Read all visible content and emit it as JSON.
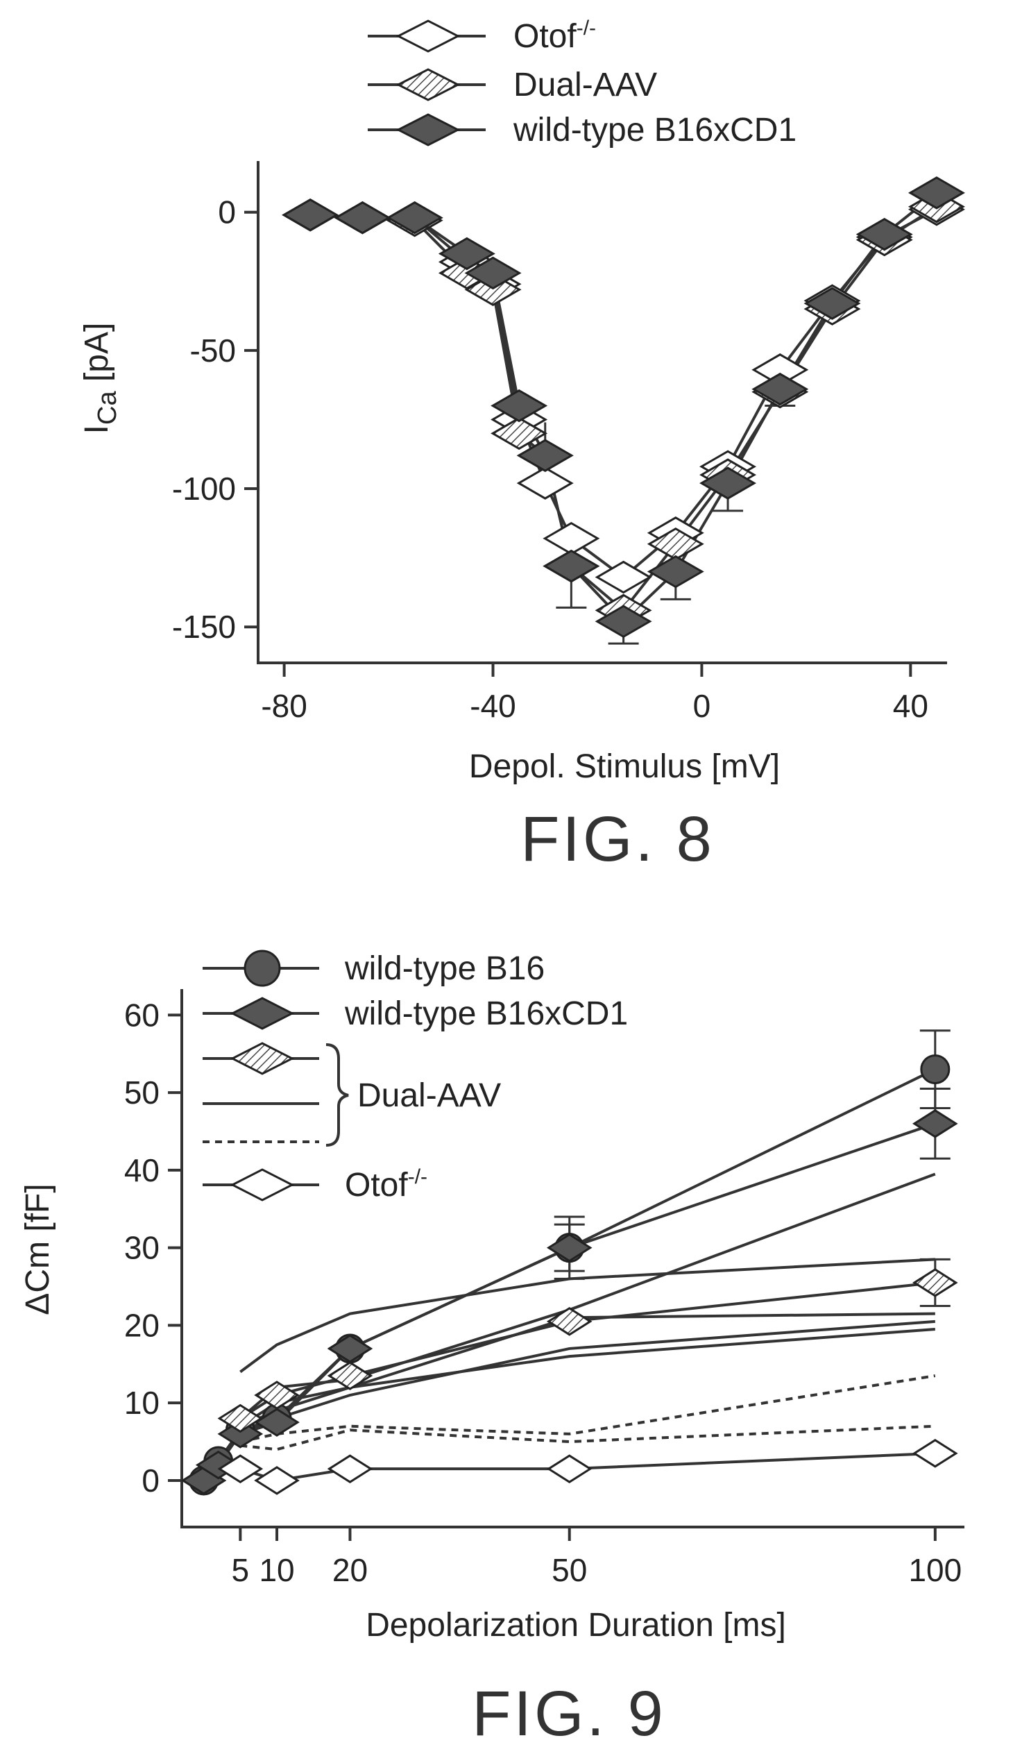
{
  "chart_data": [
    {
      "type": "line",
      "title": "FIG. 8",
      "xlabel": "Depol. Stimulus [mV]",
      "ylabel": "I",
      "ylabel_sub": "Ca",
      "ylabel_unit": " [pA]",
      "xlim": [
        -85,
        47
      ],
      "ylim": [
        -163,
        16
      ],
      "xticks": [
        -80,
        -40,
        0,
        40
      ],
      "yticks": [
        0,
        -50,
        -100,
        -150
      ],
      "xtick_labels": [
        "-80",
        "-40",
        "0",
        "40"
      ],
      "ytick_labels": [
        "0",
        "-50",
        "-100",
        "-150"
      ],
      "legend_position": "top",
      "legend_sup": "-/-",
      "series": [
        {
          "name": "Otof",
          "marker": "diamond-open",
          "x": [
            -75,
            -65,
            -55,
            -45,
            -40,
            -35,
            -30,
            -25,
            -15,
            -5,
            5,
            15,
            25,
            35,
            45
          ],
          "y": [
            -1,
            -2,
            -2,
            -18,
            -26,
            -75,
            -98,
            -118,
            -132,
            -116,
            -92,
            -57,
            -32,
            -9,
            1
          ]
        },
        {
          "name": "Dual-AAV",
          "marker": "diamond-hatched",
          "x": [
            -75,
            -65,
            -55,
            -45,
            -40,
            -35,
            -30,
            -25,
            -15,
            -5,
            5,
            15,
            25,
            35,
            45
          ],
          "y": [
            -1,
            -2,
            -3,
            -22,
            -28,
            -80,
            -88,
            -128,
            -144,
            -120,
            -95,
            -65,
            -35,
            -10,
            2
          ]
        },
        {
          "name": "wild-type B16xCD1",
          "marker": "diamond-filled",
          "x": [
            -75,
            -65,
            -55,
            -45,
            -40,
            -35,
            -30,
            -25,
            -15,
            -5,
            5,
            15,
            25,
            35,
            45
          ],
          "y": [
            -1,
            -2,
            -2,
            -15,
            -22,
            -70,
            -88,
            -128,
            -148,
            -130,
            -98,
            -64,
            -33,
            -8,
            7
          ],
          "error": [
            0,
            0,
            0,
            3,
            3,
            4,
            12,
            15,
            8,
            10,
            10,
            6,
            3,
            2,
            2
          ]
        }
      ]
    },
    {
      "type": "line",
      "title": "FIG. 9",
      "xlabel": "Depolarization Duration [ms]",
      "ylabel": "ΔCm [fF]",
      "xlim": [
        -3,
        104
      ],
      "ylim": [
        -6,
        62
      ],
      "xticks": [
        5,
        10,
        20,
        50,
        100
      ],
      "yticks": [
        0,
        10,
        20,
        30,
        40,
        50,
        60
      ],
      "xtick_labels": [
        "5",
        "10",
        "20",
        "50",
        "100"
      ],
      "ytick_labels": [
        "0",
        "10",
        "20",
        "30",
        "40",
        "50",
        "60"
      ],
      "legend_position": "top-left",
      "legend_sup": "-/-",
      "legend_brace_label": "Dual-AAV",
      "series": [
        {
          "name": "wild-type B16",
          "marker": "circle-filled",
          "x": [
            0,
            2,
            5,
            10,
            20,
            50,
            100
          ],
          "y": [
            0,
            2.5,
            6.5,
            8,
            17,
            30,
            53
          ],
          "error": [
            0,
            0,
            0,
            0,
            0,
            4,
            5
          ]
        },
        {
          "name": "wild-type B16xCD1",
          "marker": "diamond-filled",
          "x": [
            0,
            2,
            5,
            10,
            20,
            50,
            100
          ],
          "y": [
            0,
            2,
            6,
            7.5,
            17,
            30,
            46
          ],
          "error": [
            0,
            0,
            0,
            0,
            0,
            3,
            4.5
          ]
        },
        {
          "name": "Dual-AAV",
          "marker": "diamond-hatched",
          "x": [
            5,
            10,
            20,
            50,
            100
          ],
          "y": [
            8,
            11,
            13.5,
            20.5,
            25.5
          ],
          "error": [
            0,
            0,
            0,
            0,
            3
          ]
        },
        {
          "name": "",
          "marker": "none",
          "style": "solid",
          "x": [
            5,
            10,
            20,
            50,
            100
          ],
          "y": [
            14,
            17.5,
            21.5,
            26,
            28.5
          ]
        },
        {
          "name": "",
          "marker": "none",
          "style": "solid",
          "x": [
            5,
            10,
            20,
            50,
            100
          ],
          "y": [
            8,
            12,
            13,
            22,
            39.5
          ]
        },
        {
          "name": "",
          "marker": "none",
          "style": "solid",
          "x": [
            5,
            10,
            20,
            50,
            100
          ],
          "y": [
            7,
            9,
            12,
            21,
            21.5
          ]
        },
        {
          "name": "",
          "marker": "none",
          "style": "solid",
          "x": [
            5,
            10,
            20,
            50,
            100
          ],
          "y": [
            6,
            8,
            11,
            17,
            20.5
          ]
        },
        {
          "name": "",
          "marker": "none",
          "style": "solid",
          "x": [
            5,
            10,
            20,
            50,
            100
          ],
          "y": [
            7,
            10,
            12,
            16,
            19.5
          ]
        },
        {
          "name": "",
          "marker": "none",
          "style": "dashed",
          "x": [
            5,
            10,
            20,
            50,
            100
          ],
          "y": [
            5,
            6,
            7,
            6,
            13.5
          ]
        },
        {
          "name": "",
          "marker": "none",
          "style": "dashed",
          "x": [
            5,
            10,
            20,
            50,
            100
          ],
          "y": [
            4.5,
            4,
            6.5,
            5,
            7
          ]
        },
        {
          "name": "Otof",
          "marker": "diamond-open",
          "x": [
            5,
            10,
            20,
            50,
            100
          ],
          "y": [
            1.5,
            0,
            1.5,
            1.5,
            3.5
          ]
        }
      ]
    }
  ]
}
